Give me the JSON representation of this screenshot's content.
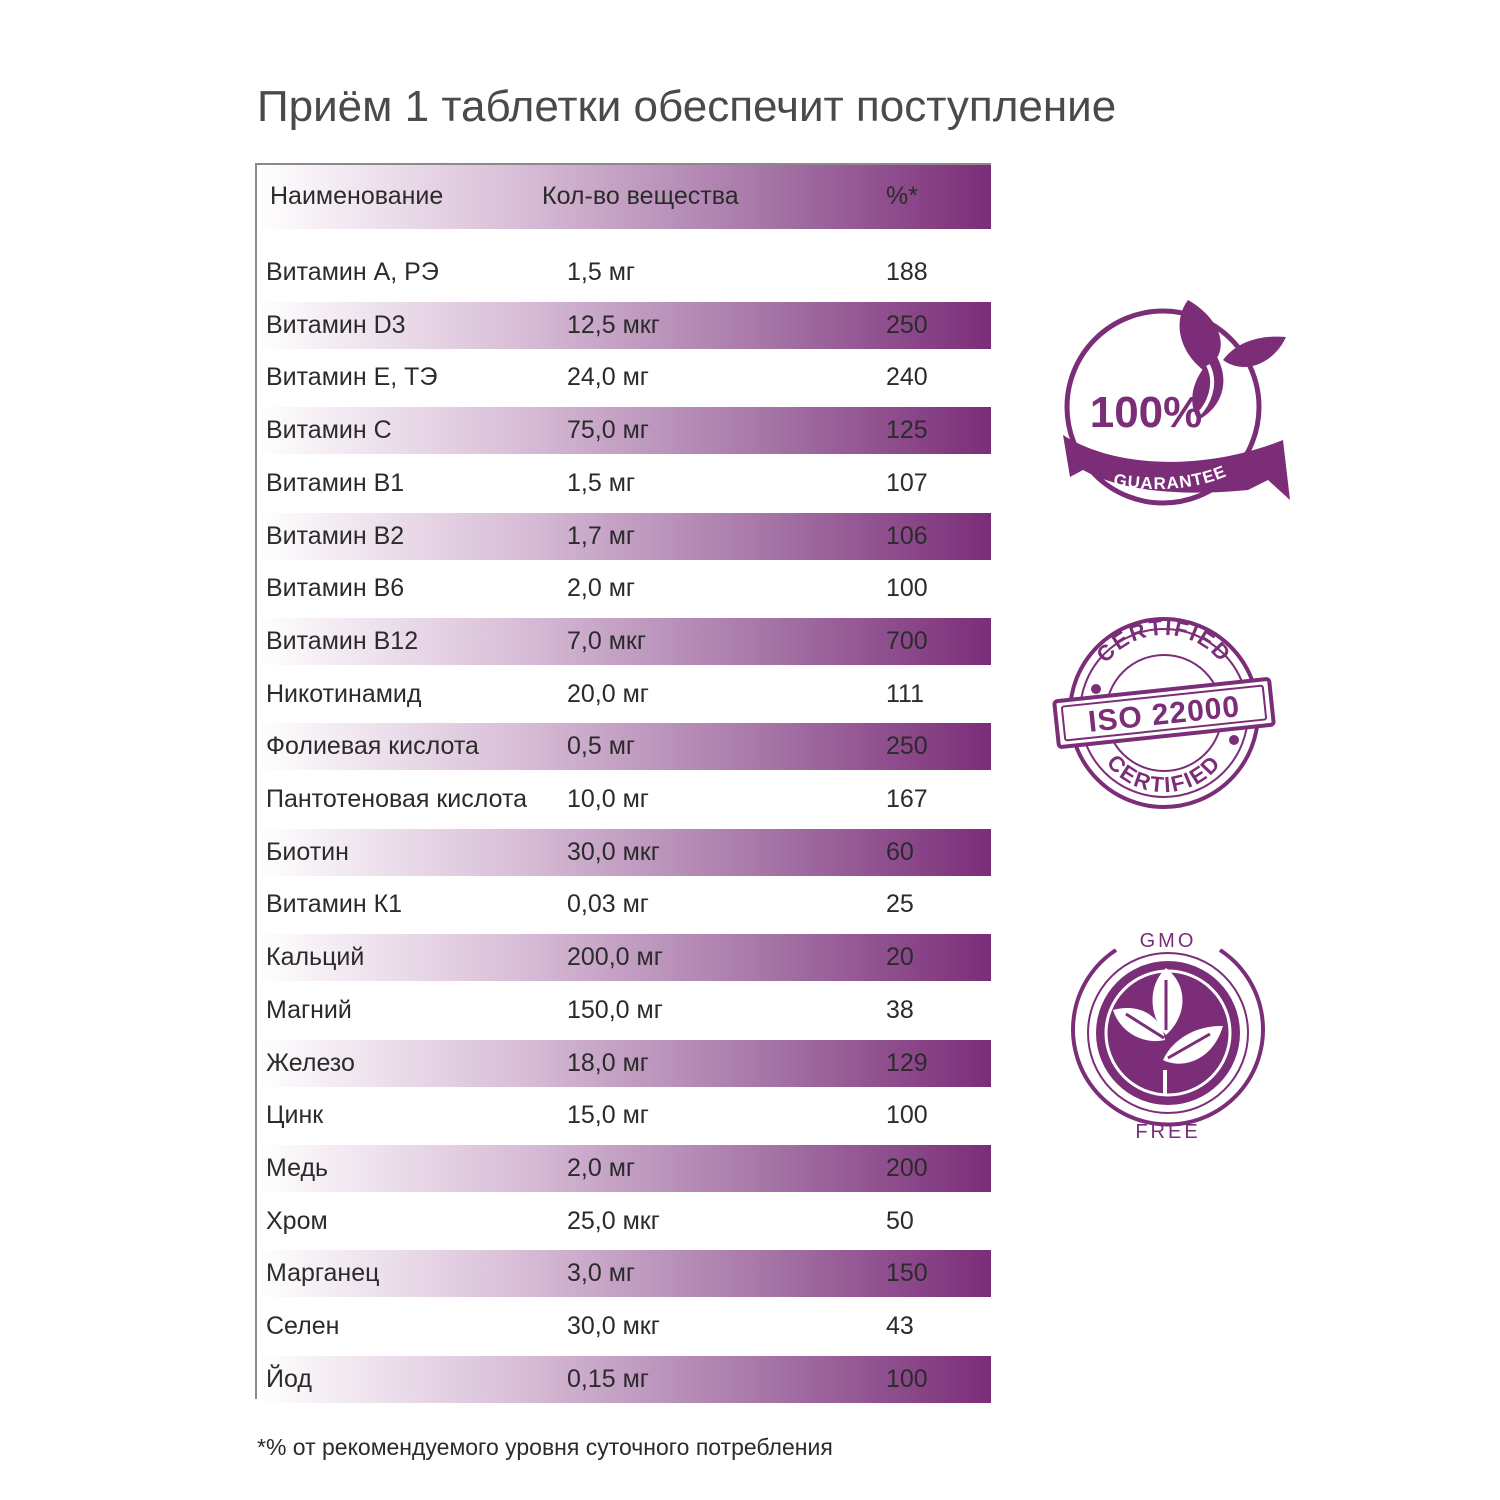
{
  "title": "Приём 1 таблетки обеспечит поступление",
  "table": {
    "headers": [
      "Наименование",
      "Кол-во вещества",
      "%*"
    ],
    "rows": [
      [
        "Витамин А, РЭ",
        "1,5 мг",
        "188"
      ],
      [
        "Витамин D3",
        "12,5 мкг",
        "250"
      ],
      [
        "Витамин Е, ТЭ",
        "24,0 мг",
        "240"
      ],
      [
        "Витамин С",
        "75,0 мг",
        "125"
      ],
      [
        "Витамин В1",
        "1,5 мг",
        "107"
      ],
      [
        "Витамин В2",
        "1,7 мг",
        "106"
      ],
      [
        "Витамин В6",
        "2,0 мг",
        "100"
      ],
      [
        "Витамин В12",
        "7,0 мкг",
        "700"
      ],
      [
        "Никотинамид",
        "20,0 мг",
        "111"
      ],
      [
        "Фолиевая кислота",
        "0,5 мг",
        "250"
      ],
      [
        "Пантотеновая кислота",
        "10,0 мг",
        "167"
      ],
      [
        "Биотин",
        "30,0 мкг",
        "60"
      ],
      [
        "Витамин К1",
        "0,03 мг",
        "25"
      ],
      [
        "Кальций",
        "200,0 мг",
        "20"
      ],
      [
        "Магний",
        "150,0 мг",
        "38"
      ],
      [
        "Железо",
        "18,0 мг",
        "129"
      ],
      [
        "Цинк",
        "15,0 мг",
        "100"
      ],
      [
        "Медь",
        "2,0 мг",
        "200"
      ],
      [
        "Хром",
        "25,0 мкг",
        "50"
      ],
      [
        "Марганец",
        "3,0 мг",
        "150"
      ],
      [
        "Селен",
        "30,0 мкг",
        "43"
      ],
      [
        "Йод",
        "0,15 мг",
        "100"
      ]
    ]
  },
  "footnote": "*% от рекомендуемого уровня суточного потребления",
  "badges": {
    "guarantee": {
      "percent": "100%",
      "ribbon": "GUARANTEE"
    },
    "iso": {
      "top": "CERTIFIED",
      "center": "ISO 22000",
      "bottom": "CERTIFIED"
    },
    "gmo": {
      "top": "GMO",
      "bottom": "FREE"
    }
  },
  "colors": {
    "purple": "#7b2d78",
    "text": "#2b2b2b",
    "title": "#4a4a4a"
  }
}
